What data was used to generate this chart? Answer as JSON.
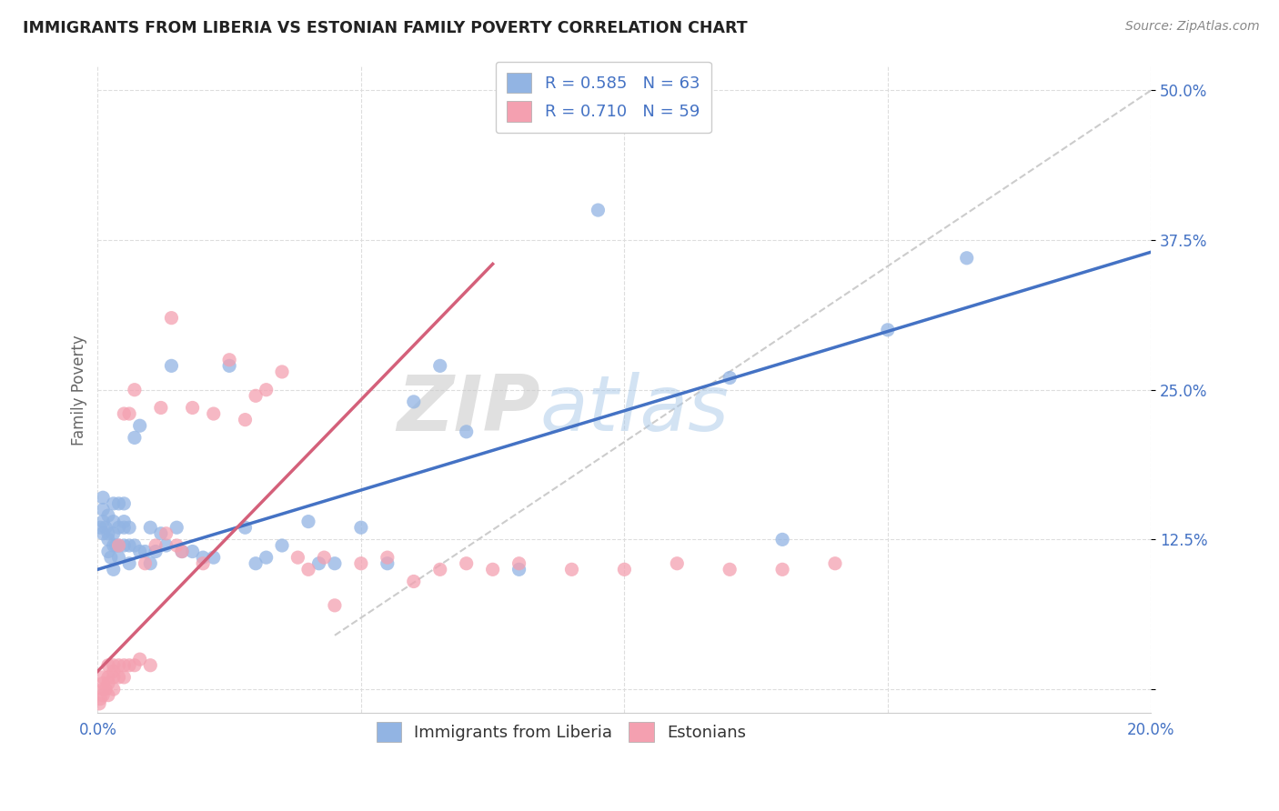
{
  "title": "IMMIGRANTS FROM LIBERIA VS ESTONIAN FAMILY POVERTY CORRELATION CHART",
  "source": "Source: ZipAtlas.com",
  "ylabel": "Family Poverty",
  "legend_label1": "Immigrants from Liberia",
  "legend_label2": "Estonians",
  "r1": "0.585",
  "n1": "63",
  "r2": "0.710",
  "n2": "59",
  "watermark_zip": "ZIP",
  "watermark_atlas": "atlas",
  "blue_color": "#92b4e3",
  "pink_color": "#f4a0b0",
  "blue_line_color": "#4472c4",
  "pink_line_color": "#d4607a",
  "diag_line_color": "#cccccc",
  "title_color": "#222222",
  "axis_tick_color": "#4472c4",
  "ylabel_color": "#666666",
  "background_color": "#ffffff",
  "grid_color": "#dddddd",
  "xlim": [
    0.0,
    0.2
  ],
  "ylim": [
    -0.02,
    0.52
  ],
  "blue_scatter_x": [
    0.0005,
    0.001,
    0.001,
    0.001,
    0.001,
    0.0015,
    0.002,
    0.002,
    0.002,
    0.002,
    0.0025,
    0.003,
    0.003,
    0.003,
    0.003,
    0.003,
    0.0035,
    0.004,
    0.004,
    0.004,
    0.004,
    0.005,
    0.005,
    0.005,
    0.005,
    0.006,
    0.006,
    0.006,
    0.007,
    0.007,
    0.008,
    0.008,
    0.009,
    0.01,
    0.01,
    0.011,
    0.012,
    0.013,
    0.014,
    0.015,
    0.016,
    0.018,
    0.02,
    0.022,
    0.025,
    0.028,
    0.03,
    0.032,
    0.035,
    0.04,
    0.042,
    0.045,
    0.05,
    0.055,
    0.06,
    0.065,
    0.07,
    0.08,
    0.095,
    0.12,
    0.13,
    0.15,
    0.165
  ],
  "blue_scatter_y": [
    0.135,
    0.13,
    0.14,
    0.15,
    0.16,
    0.135,
    0.115,
    0.125,
    0.13,
    0.145,
    0.11,
    0.1,
    0.12,
    0.13,
    0.14,
    0.155,
    0.12,
    0.11,
    0.12,
    0.135,
    0.155,
    0.12,
    0.135,
    0.14,
    0.155,
    0.105,
    0.12,
    0.135,
    0.12,
    0.21,
    0.115,
    0.22,
    0.115,
    0.105,
    0.135,
    0.115,
    0.13,
    0.12,
    0.27,
    0.135,
    0.115,
    0.115,
    0.11,
    0.11,
    0.27,
    0.135,
    0.105,
    0.11,
    0.12,
    0.14,
    0.105,
    0.105,
    0.135,
    0.105,
    0.24,
    0.27,
    0.215,
    0.1,
    0.4,
    0.26,
    0.125,
    0.3,
    0.36
  ],
  "pink_scatter_x": [
    0.0003,
    0.0005,
    0.001,
    0.001,
    0.001,
    0.001,
    0.0015,
    0.002,
    0.002,
    0.002,
    0.002,
    0.003,
    0.003,
    0.003,
    0.003,
    0.004,
    0.004,
    0.004,
    0.005,
    0.005,
    0.005,
    0.006,
    0.006,
    0.007,
    0.007,
    0.008,
    0.009,
    0.01,
    0.011,
    0.012,
    0.013,
    0.014,
    0.015,
    0.016,
    0.018,
    0.02,
    0.022,
    0.025,
    0.028,
    0.03,
    0.032,
    0.035,
    0.038,
    0.04,
    0.043,
    0.045,
    0.05,
    0.055,
    0.06,
    0.065,
    0.07,
    0.075,
    0.08,
    0.09,
    0.1,
    0.11,
    0.12,
    0.13,
    0.14
  ],
  "pink_scatter_y": [
    -0.012,
    -0.008,
    -0.005,
    0.0,
    0.005,
    0.01,
    0.0,
    -0.005,
    0.005,
    0.01,
    0.02,
    0.0,
    0.01,
    0.02,
    0.015,
    0.01,
    0.02,
    0.12,
    0.01,
    0.23,
    0.02,
    0.02,
    0.23,
    0.02,
    0.25,
    0.025,
    0.105,
    0.02,
    0.12,
    0.235,
    0.13,
    0.31,
    0.12,
    0.115,
    0.235,
    0.105,
    0.23,
    0.275,
    0.225,
    0.245,
    0.25,
    0.265,
    0.11,
    0.1,
    0.11,
    0.07,
    0.105,
    0.11,
    0.09,
    0.1,
    0.105,
    0.1,
    0.105,
    0.1,
    0.1,
    0.105,
    0.1,
    0.1,
    0.105
  ],
  "blue_line_x": [
    0.0,
    0.2
  ],
  "blue_line_y": [
    0.1,
    0.365
  ],
  "pink_line_x": [
    0.0,
    0.075
  ],
  "pink_line_y": [
    0.015,
    0.355
  ],
  "diag_line_x": [
    0.045,
    0.2
  ],
  "diag_line_y": [
    0.045,
    0.5
  ],
  "yticks": [
    0.0,
    0.125,
    0.25,
    0.375,
    0.5
  ],
  "ytick_labels": [
    "",
    "12.5%",
    "25.0%",
    "37.5%",
    "50.0%"
  ],
  "xticks": [
    0.0,
    0.05,
    0.1,
    0.15,
    0.2
  ],
  "xtick_labels": [
    "0.0%",
    "",
    "",
    "",
    "20.0%"
  ]
}
